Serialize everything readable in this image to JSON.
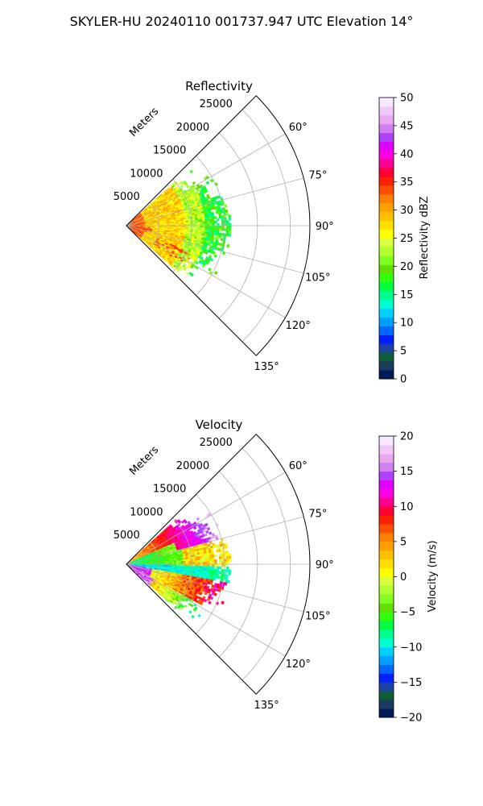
{
  "figure": {
    "title": "SKYLER-HU  20240110  001737.947 UTC Elevation 14°"
  },
  "chart_data": [
    {
      "type": "heatmap",
      "projection": "polar-sector",
      "title": "Reflectivity",
      "radial_axis_label": "Meters",
      "radial_ticks": [
        5000,
        10000,
        15000,
        20000,
        25000
      ],
      "radial_tick_labels": [
        "5000",
        "10000",
        "15000",
        "20000",
        "25000"
      ],
      "rlim": [
        0,
        28000
      ],
      "azimuth_ticks": [
        60,
        75,
        90,
        105,
        120,
        135
      ],
      "azimuth_tick_labels": [
        "60°",
        "75°",
        "90°",
        "105°",
        "120°",
        "135°"
      ],
      "azimuth_range_deg": [
        45,
        135
      ],
      "data_sector_deg": [
        48,
        132
      ],
      "data_range_m": [
        0,
        16000
      ],
      "grid": true,
      "colorbar": {
        "label": "Reflectivity dBZ",
        "range": [
          0,
          50
        ],
        "ticks": [
          0,
          5,
          10,
          15,
          20,
          25,
          30,
          35,
          40,
          45,
          50
        ],
        "tick_labels": [
          "0",
          "5",
          "10",
          "15",
          "20",
          "25",
          "30",
          "35",
          "40",
          "45",
          "50"
        ],
        "colors": [
          "#001a59",
          "#1a3a5e",
          "#0d5c3a",
          "#1e40a0",
          "#0020ff",
          "#0066ff",
          "#00a0ff",
          "#00d0ff",
          "#00ffd0",
          "#00ff90",
          "#00ff40",
          "#30ff10",
          "#60e000",
          "#80ff20",
          "#b0ff30",
          "#d8ff40",
          "#ffff00",
          "#ffe000",
          "#ffc000",
          "#ffa000",
          "#ff8000",
          "#ff5000",
          "#ff2000",
          "#ff0030",
          "#ff0090",
          "#ff00e0",
          "#e000ff",
          "#b040ff",
          "#d080f0",
          "#e8a8f0",
          "#f0c8f8",
          "#f8e8ff"
        ]
      }
    },
    {
      "type": "heatmap",
      "projection": "polar-sector",
      "title": "Velocity",
      "radial_axis_label": "Meters",
      "radial_ticks": [
        5000,
        10000,
        15000,
        20000,
        25000
      ],
      "radial_tick_labels": [
        "5000",
        "10000",
        "15000",
        "20000",
        "25000"
      ],
      "rlim": [
        0,
        28000
      ],
      "azimuth_ticks": [
        60,
        75,
        90,
        105,
        120,
        135
      ],
      "azimuth_tick_labels": [
        "60°",
        "75°",
        "90°",
        "105°",
        "120°",
        "135°"
      ],
      "azimuth_range_deg": [
        45,
        135
      ],
      "data_sector_deg": [
        48,
        132
      ],
      "data_range_m": [
        0,
        16000
      ],
      "grid": true,
      "colorbar": {
        "label": "Velocity (m/s)",
        "range": [
          -20,
          20
        ],
        "ticks": [
          -20,
          -15,
          -10,
          -5,
          0,
          5,
          10,
          15,
          20
        ],
        "tick_labels": [
          "−20",
          "−15",
          "−10",
          "−5",
          "0",
          "5",
          "10",
          "15",
          "20"
        ],
        "colors": [
          "#001a59",
          "#1a3a5e",
          "#0d5c3a",
          "#1e40a0",
          "#0020ff",
          "#0066ff",
          "#00a0ff",
          "#00d0ff",
          "#00ffd0",
          "#00ff90",
          "#00ff40",
          "#30ff10",
          "#60e000",
          "#80ff20",
          "#b0ff30",
          "#d8ff40",
          "#ffff00",
          "#ffe000",
          "#ffc000",
          "#ffa000",
          "#ff8000",
          "#ff5000",
          "#ff2000",
          "#ff0030",
          "#ff0090",
          "#ff00e0",
          "#e000ff",
          "#b040ff",
          "#d080f0",
          "#e8a8f0",
          "#f0c8f8",
          "#f8e8ff"
        ]
      }
    }
  ]
}
